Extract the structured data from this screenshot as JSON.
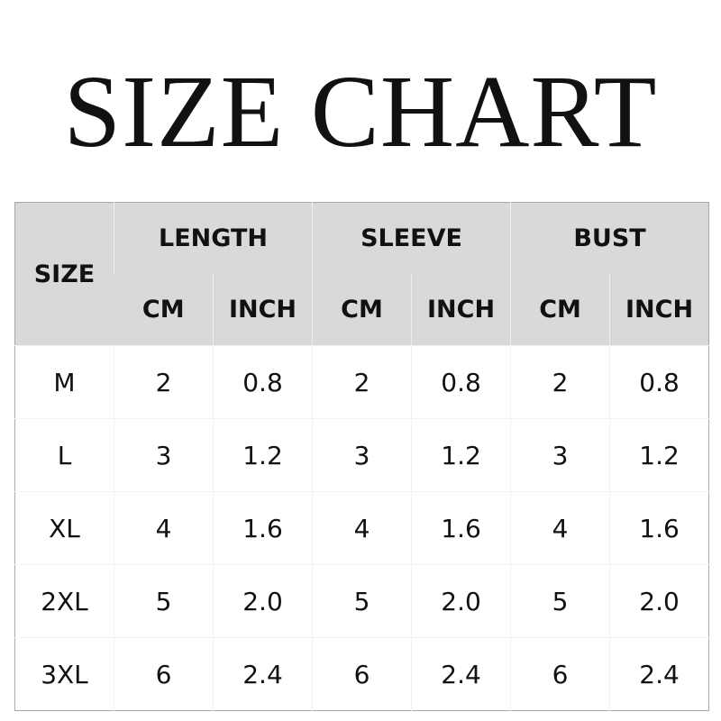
{
  "title": "SIZE CHART",
  "table": {
    "size_header": "SIZE",
    "groups": [
      "LENGTH",
      "SLEEVE",
      "BUST"
    ],
    "units": [
      "CM",
      "INCH"
    ],
    "rows": [
      {
        "size": "M",
        "values": [
          "2",
          "0.8",
          "2",
          "0.8",
          "2",
          "0.8"
        ]
      },
      {
        "size": "L",
        "values": [
          "3",
          "1.2",
          "3",
          "1.2",
          "3",
          "1.2"
        ]
      },
      {
        "size": "XL",
        "values": [
          "4",
          "1.6",
          "4",
          "1.6",
          "4",
          "1.6"
        ]
      },
      {
        "size": "2XL",
        "values": [
          "5",
          "2.0",
          "5",
          "2.0",
          "5",
          "2.0"
        ]
      },
      {
        "size": "3XL",
        "values": [
          "6",
          "2.4",
          "6",
          "2.4",
          "6",
          "2.4"
        ]
      }
    ],
    "header_color": "#d9d9d9",
    "border_color": "#a8a8a8"
  }
}
